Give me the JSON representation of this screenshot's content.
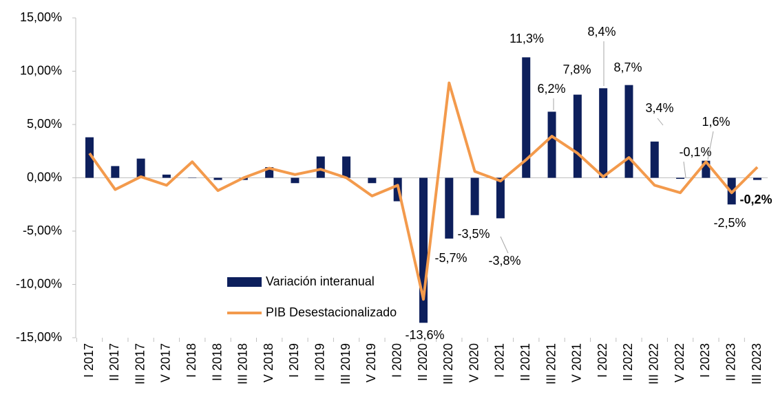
{
  "chart_data": {
    "type": "bar_line",
    "categories": [
      "I 2017",
      "II 2017",
      "III 2017",
      "V 2017",
      "I 2018",
      "II 2018",
      "III 2018",
      "V 2018",
      "I 2019",
      "II 2019",
      "III 2019",
      "V 2019",
      "I 2020",
      "II 2020",
      "III 2020",
      "V 2020",
      "I 2021",
      "II 2021",
      "III 2021",
      "V 2021",
      "I 2022",
      "II 2022",
      "III 2022",
      "V 2022",
      "I 2023",
      "II 2023",
      "III 2023"
    ],
    "series": [
      {
        "name": "Variación interanual",
        "type": "bar",
        "color": "#0d1f5c",
        "values": [
          3.8,
          1.1,
          1.8,
          0.3,
          0,
          -0.2,
          -0.2,
          1.0,
          -0.5,
          2.0,
          2.0,
          -0.5,
          -2.2,
          -13.6,
          -5.7,
          -3.5,
          -3.8,
          11.3,
          6.2,
          7.8,
          8.4,
          8.7,
          3.4,
          -0.1,
          1.6,
          -2.5,
          -0.2
        ],
        "value_labels": [
          null,
          null,
          null,
          null,
          null,
          null,
          null,
          null,
          null,
          null,
          null,
          null,
          null,
          "-13,6%",
          "-5,7%",
          "-3,5%",
          "-3,8%",
          "11,3%",
          "6,2%",
          "7,8%",
          "8,4%",
          "8,7%",
          "3,4%",
          "-0,1%",
          "1,6%",
          "-2,5%",
          "-0,2%"
        ]
      },
      {
        "name": "PIB Desestacionalizado",
        "type": "line",
        "color": "#f39a4c",
        "values": [
          2.3,
          -1.1,
          0.1,
          -0.7,
          1.5,
          -1.2,
          0,
          0.9,
          0.3,
          0.8,
          0,
          -1.7,
          -0.7,
          -11.4,
          8.9,
          0.6,
          -0.3,
          1.7,
          3.9,
          2.3,
          0.1,
          1.9,
          -0.7,
          -1.4,
          1.5,
          -1.4,
          1.0
        ]
      }
    ],
    "ylim": [
      -15,
      15
    ],
    "yticks": [
      {
        "value": -15,
        "label": "-15,00%"
      },
      {
        "value": -10,
        "label": "-10,00%"
      },
      {
        "value": -5,
        "label": "-5,00%"
      },
      {
        "value": 0,
        "label": "0,00%"
      },
      {
        "value": 5,
        "label": "5,00%"
      },
      {
        "value": 10,
        "label": "10,00%"
      },
      {
        "value": 15,
        "label": "15,00%"
      }
    ]
  }
}
